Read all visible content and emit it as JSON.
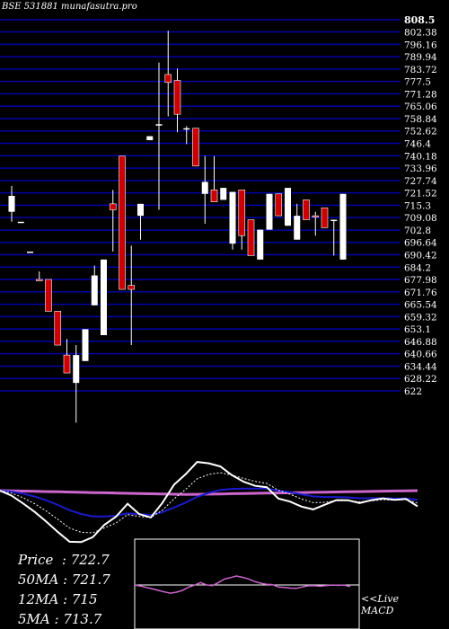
{
  "header": {
    "title": "BSE 531881 munafasutra.pro"
  },
  "stats": {
    "price_label": "Price",
    "price_value": "722.7",
    "ma50_label": "50MA",
    "ma50_value": "721.7",
    "ma12_label": "12MA",
    "ma12_value": "715",
    "ma5_label": "5MA",
    "ma5_value": "713.7"
  },
  "macd": {
    "live_label": "<<Live",
    "macd_label": "MACD"
  },
  "colors": {
    "background": "#000000",
    "grid": "#0000aa",
    "bull": "#ffffff",
    "bear": "#cc0000",
    "ma_fast": "#ffffff",
    "ma_slow": "#1a1acc",
    "ma_long": "#cc66cc"
  },
  "chart_data": {
    "type": "candlestick",
    "y_ticks": [
      "808.5",
      "802.38",
      "796.16",
      "789.94",
      "783.72",
      "777.5",
      "771.28",
      "765.06",
      "758.84",
      "752.62",
      "746.4",
      "740.18",
      "733.96",
      "727.74",
      "721.52",
      "715.3",
      "709.08",
      "702.8",
      "696.64",
      "690.42",
      "684.2",
      "677.98",
      "671.76",
      "665.54",
      "659.32",
      "653.1",
      "646.88",
      "640.66",
      "634.44",
      "628.22",
      "622"
    ],
    "ylim": [
      622,
      808.5
    ],
    "candles": [
      {
        "o": 712,
        "h": 725,
        "l": 707,
        "c": 720,
        "color": "white"
      },
      {
        "o": 707,
        "h": 707,
        "l": 707,
        "c": 707,
        "color": "white"
      },
      {
        "o": 692,
        "h": 692,
        "l": 692,
        "c": 692,
        "color": "white"
      },
      {
        "o": 678,
        "h": 682,
        "l": 678,
        "c": 678,
        "color": "red"
      },
      {
        "o": 678,
        "h": 678,
        "l": 662,
        "c": 662,
        "color": "red"
      },
      {
        "o": 662,
        "h": 662,
        "l": 645,
        "c": 645,
        "color": "red"
      },
      {
        "o": 640,
        "h": 648,
        "l": 631,
        "c": 631,
        "color": "red"
      },
      {
        "o": 626,
        "h": 645,
        "l": 606,
        "c": 640,
        "color": "white"
      },
      {
        "o": 637,
        "h": 653,
        "l": 637,
        "c": 653,
        "color": "white"
      },
      {
        "o": 665,
        "h": 685,
        "l": 665,
        "c": 680,
        "color": "white"
      },
      {
        "o": 650,
        "h": 688,
        "l": 650,
        "c": 688,
        "color": "white"
      },
      {
        "o": 716,
        "h": 723,
        "l": 692,
        "c": 713,
        "color": "red"
      },
      {
        "o": 740,
        "h": 740,
        "l": 673,
        "c": 673,
        "color": "red"
      },
      {
        "o": 673,
        "h": 695,
        "l": 645,
        "c": 675,
        "color": "red"
      },
      {
        "o": 710,
        "h": 716,
        "l": 698,
        "c": 716,
        "color": "white"
      },
      {
        "o": 750,
        "h": 750,
        "l": 748,
        "c": 748,
        "color": "white"
      },
      {
        "o": 756,
        "h": 787,
        "l": 713,
        "c": 756,
        "color": "white"
      },
      {
        "o": 781,
        "h": 803,
        "l": 760,
        "c": 777,
        "color": "red"
      },
      {
        "o": 778,
        "h": 784,
        "l": 752,
        "c": 761,
        "color": "red"
      },
      {
        "o": 754,
        "h": 755,
        "l": 746,
        "c": 754,
        "color": "white"
      },
      {
        "o": 754,
        "h": 754,
        "l": 735,
        "c": 735,
        "color": "red"
      },
      {
        "o": 721,
        "h": 740,
        "l": 706,
        "c": 727,
        "color": "white"
      },
      {
        "o": 717,
        "h": 740,
        "l": 717,
        "c": 723,
        "color": "red"
      },
      {
        "o": 718,
        "h": 724,
        "l": 718,
        "c": 724,
        "color": "white"
      },
      {
        "o": 722,
        "h": 722,
        "l": 693,
        "c": 696,
        "color": "white"
      },
      {
        "o": 723,
        "h": 723,
        "l": 693,
        "c": 700,
        "color": "red"
      },
      {
        "o": 708,
        "h": 708,
        "l": 690,
        "c": 690,
        "color": "red"
      },
      {
        "o": 703,
        "h": 703,
        "l": 688,
        "c": 688,
        "color": "white"
      },
      {
        "o": 721,
        "h": 721,
        "l": 703,
        "c": 703,
        "color": "white"
      },
      {
        "o": 721,
        "h": 721,
        "l": 710,
        "c": 710,
        "color": "red"
      },
      {
        "o": 724,
        "h": 724,
        "l": 705,
        "c": 705,
        "color": "white"
      },
      {
        "o": 710,
        "h": 716,
        "l": 698,
        "c": 698,
        "color": "white"
      },
      {
        "o": 718,
        "h": 718,
        "l": 708,
        "c": 708,
        "color": "red"
      },
      {
        "o": 710,
        "h": 712,
        "l": 700,
        "c": 710,
        "color": "red"
      },
      {
        "o": 714,
        "h": 714,
        "l": 704,
        "c": 704,
        "color": "red"
      },
      {
        "o": 708,
        "h": 708,
        "l": 690,
        "c": 708,
        "color": "white"
      },
      {
        "o": 721,
        "h": 721,
        "l": 688,
        "c": 688,
        "color": "white"
      }
    ]
  }
}
